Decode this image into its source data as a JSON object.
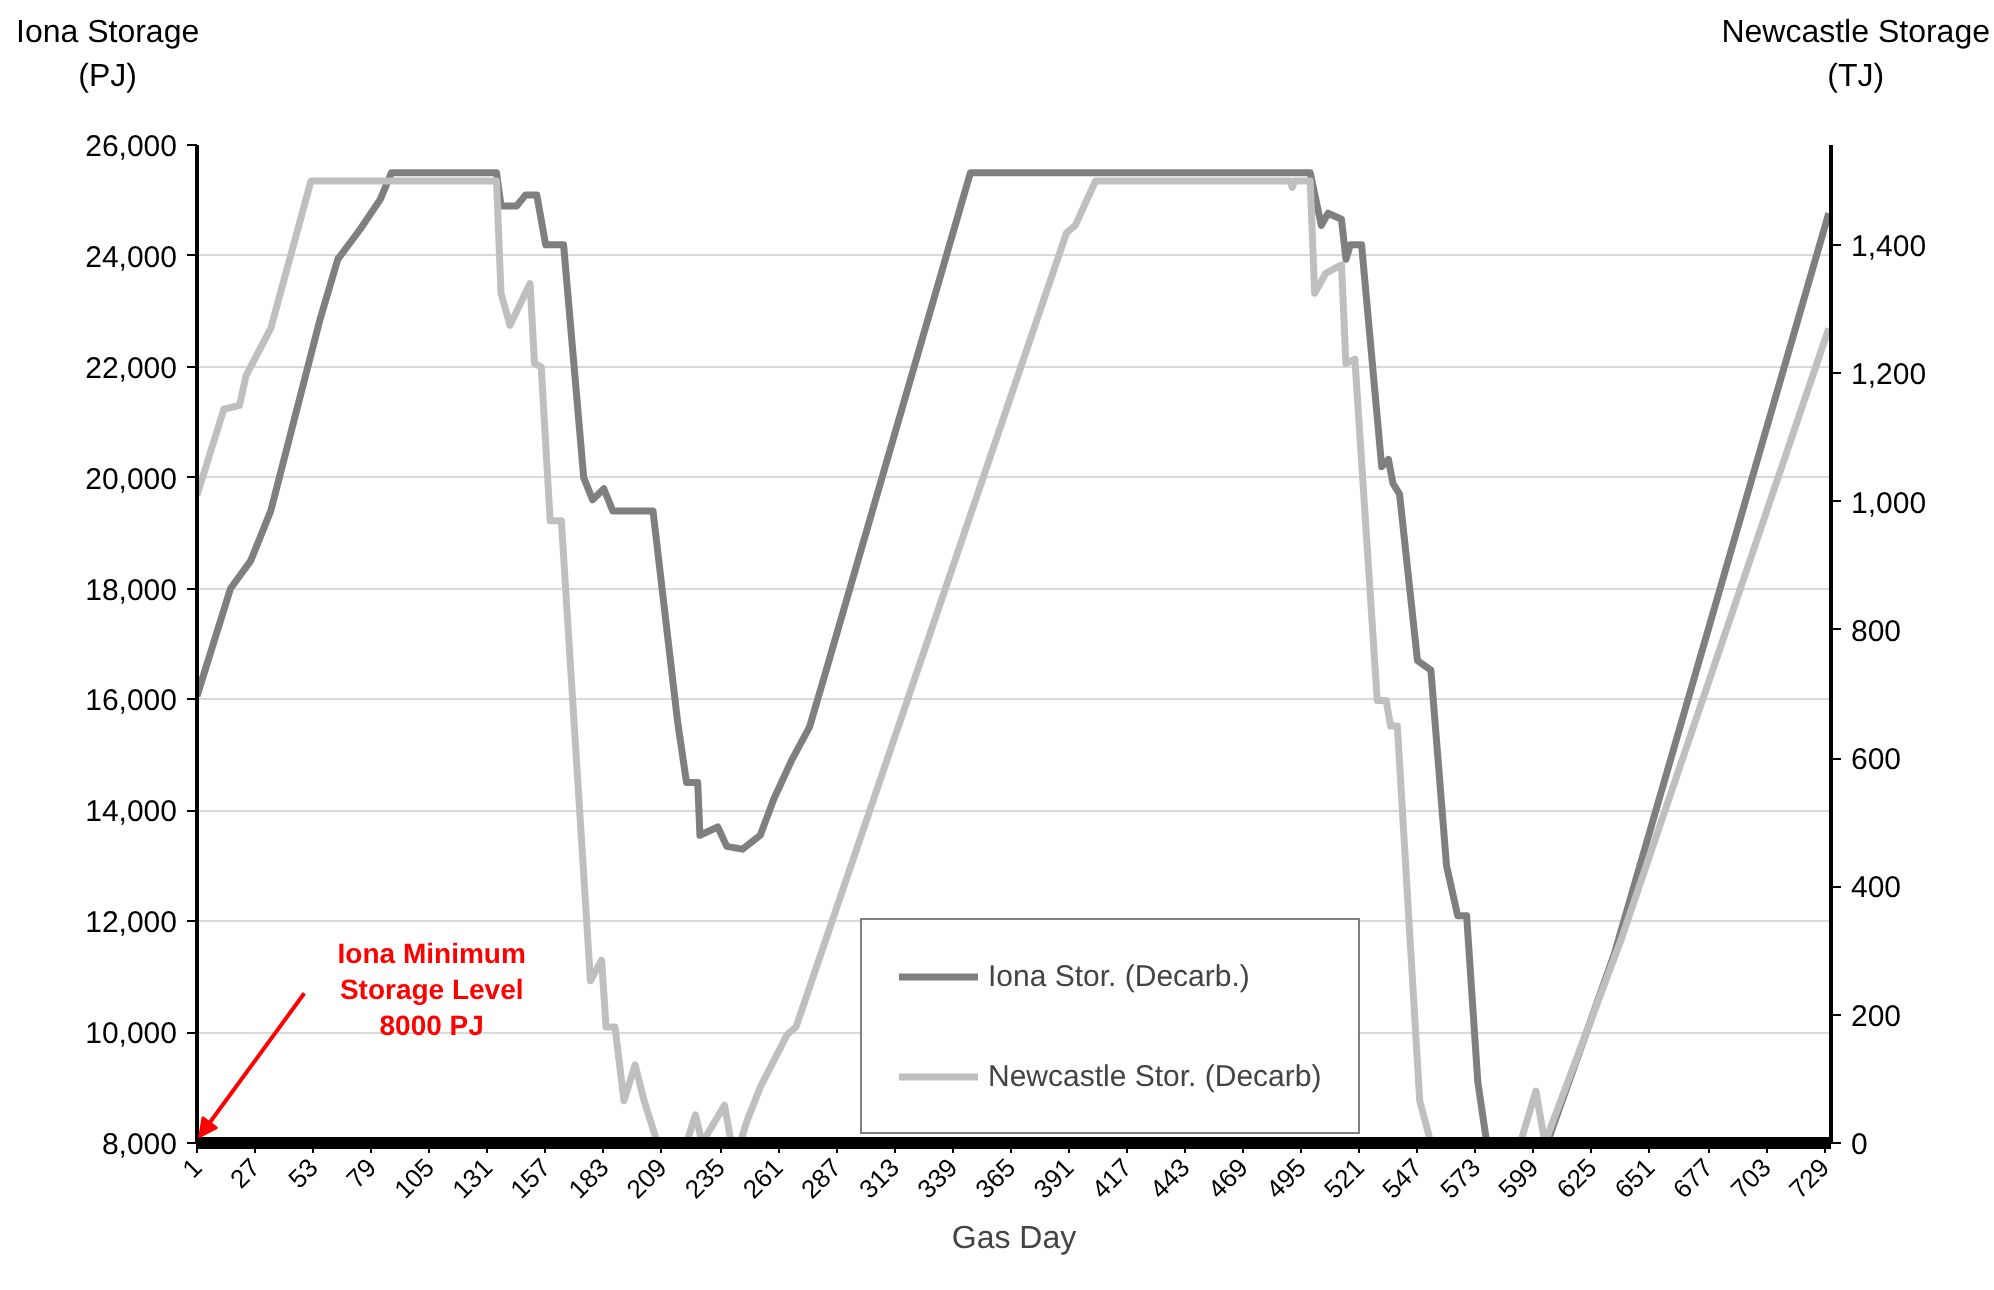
{
  "chart_data": {
    "type": "line",
    "xlabel": "Gas Day",
    "ylabel": "Iona  Storage\n(PJ)",
    "y2label": "Newcastle Storage\n(TJ)",
    "xlim": [
      1,
      732
    ],
    "xticks": [
      1,
      27,
      53,
      79,
      105,
      131,
      157,
      183,
      209,
      235,
      261,
      287,
      313,
      339,
      365,
      391,
      417,
      443,
      469,
      495,
      521,
      547,
      573,
      599,
      625,
      651,
      677,
      703,
      729
    ],
    "ylim": [
      8000,
      26000
    ],
    "yticks": [
      {
        "value": 8000,
        "label": "8,000"
      },
      {
        "value": 10000,
        "label": "10,000"
      },
      {
        "value": 12000,
        "label": "12,000"
      },
      {
        "value": 14000,
        "label": "14,000"
      },
      {
        "value": 16000,
        "label": "16,000"
      },
      {
        "value": 18000,
        "label": "18,000"
      },
      {
        "value": 20000,
        "label": "20,000"
      },
      {
        "value": 22000,
        "label": "22,000"
      },
      {
        "value": 24000,
        "label": "24,000"
      },
      {
        "value": 26000,
        "label": "26,000"
      }
    ],
    "y2lim": [
      0,
      1556
    ],
    "y2ticks": [
      0,
      200,
      400,
      600,
      800,
      {
        "value": 1000,
        "label": "1,000"
      },
      {
        "value": 1200,
        "label": "1,200"
      },
      {
        "value": 1400,
        "label": "1,400"
      }
    ],
    "grid": "y",
    "legend": "bottom",
    "line_style": "solid",
    "series": [
      {
        "name": "Iona Stor. (Decarb.)",
        "color": "#7f7f7f",
        "x": [
          1,
          16,
          25,
          34,
          56,
          64,
          74,
          83,
          88,
          135,
          137,
          144,
          148,
          153,
          157,
          165,
          174,
          178,
          183,
          187,
          205,
          216,
          220,
          225,
          226,
          234,
          238,
          245,
          253,
          259,
          267,
          275,
          283,
          347,
          499,
          504,
          507,
          513,
          515,
          517,
          522,
          531,
          534,
          536,
          539,
          547,
          553,
          560,
          565,
          569,
          574,
          578,
          605,
          635,
          731
        ],
        "values": [
          16060,
          18000,
          18500,
          19400,
          22850,
          23940,
          24480,
          25020,
          25500,
          25500,
          24900,
          24900,
          25100,
          25100,
          24200,
          24200,
          20000,
          19600,
          19800,
          19400,
          19400,
          15600,
          14500,
          14500,
          13550,
          13700,
          13350,
          13300,
          13550,
          14200,
          14900,
          15500,
          16600,
          25500,
          25500,
          24550,
          24770,
          24660,
          23940,
          24200,
          24200,
          20200,
          20330,
          19900,
          19700,
          16700,
          16530,
          13000,
          12100,
          12100,
          9100,
          8000,
          8000,
          11400,
          24770
        ]
      },
      {
        "name": "Newcastle Stor. (Decarb)",
        "color": "#bfbfbf",
        "axis": "y2",
        "x": [
          1,
          13,
          20,
          23,
          34,
          52,
          135,
          137,
          141,
          150,
          152,
          155,
          159,
          164,
          177,
          182,
          184,
          188,
          192,
          197,
          201,
          207,
          220,
          224,
          227,
          237,
          240,
          244,
          247,
          253,
          265,
          269,
          390,
          394,
          403,
          490,
          491,
          492,
          499,
          501,
          506,
          513,
          515,
          519,
          529,
          533,
          535,
          538,
          548,
          553,
          593,
          600,
          604,
          638,
          731
        ],
        "values": [
          1010,
          1144,
          1150,
          1197,
          1270,
          1500,
          1500,
          1325,
          1275,
          1340,
          1215,
          1210,
          970,
          970,
          253,
          285,
          181,
          181,
          66,
          122,
          66,
          0,
          0,
          44,
          0,
          59,
          0,
          0,
          34,
          87,
          169,
          181,
          1419,
          1431,
          1500,
          1500,
          1490,
          1500,
          1500,
          1325,
          1356,
          1369,
          1215,
          1222,
          690,
          690,
          650,
          650,
          66,
          0,
          0,
          81,
          0,
          316,
          1270
        ]
      }
    ],
    "annotations": [
      "Iona Minimum\nStorage Level\n8000 PJ"
    ]
  }
}
